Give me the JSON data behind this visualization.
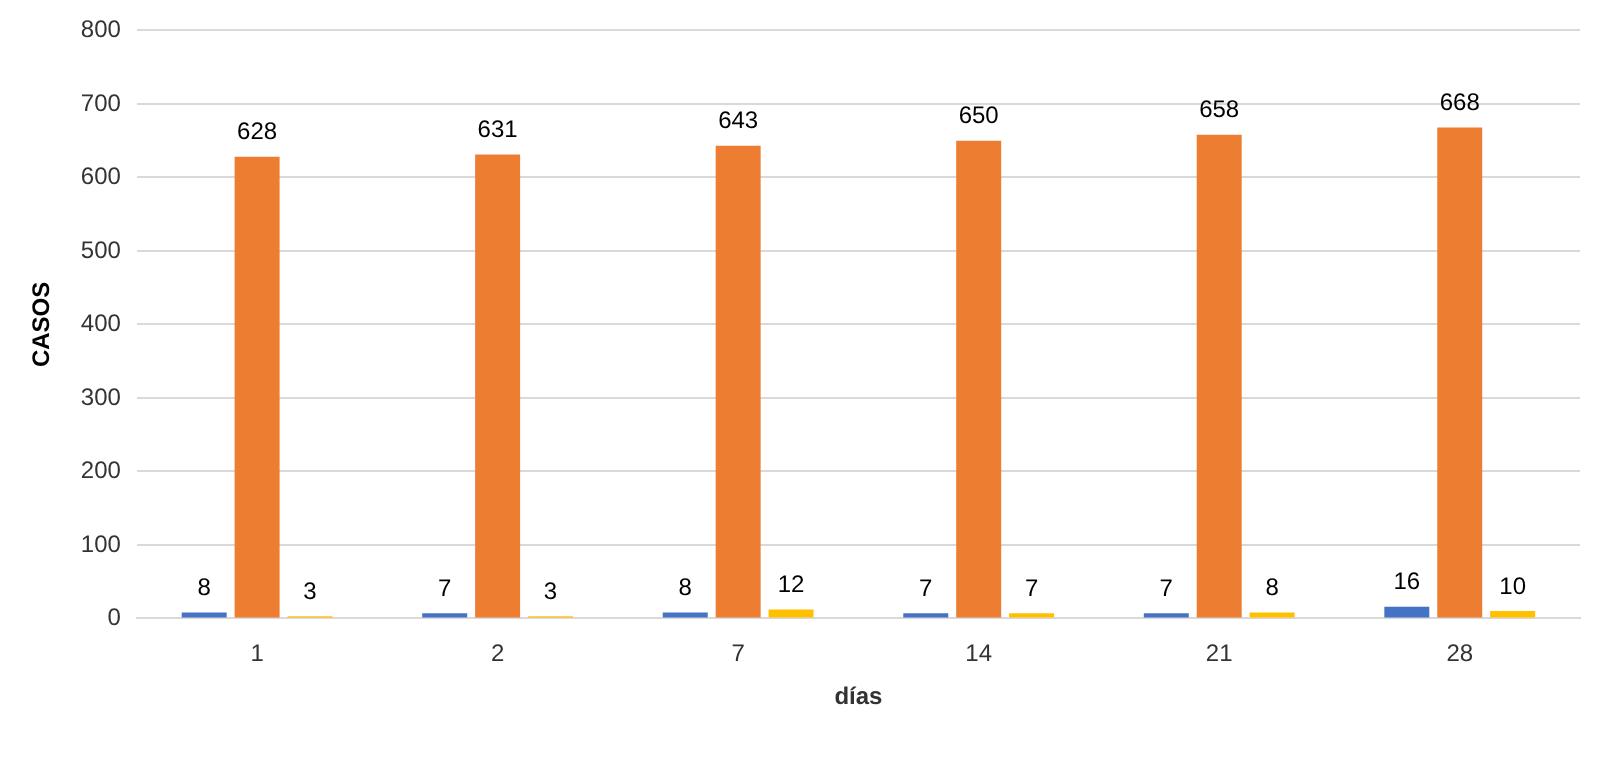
{
  "chart_data": {
    "type": "bar",
    "xlabel": "días",
    "ylabel": "CASOS",
    "categories": [
      "1",
      "2",
      "7",
      "14",
      "21",
      "28"
    ],
    "series": [
      {
        "color": "#4472c4",
        "values": [
          8,
          7,
          8,
          7,
          7,
          16
        ]
      },
      {
        "color": "#ed7d31",
        "values": [
          628,
          631,
          643,
          650,
          658,
          668
        ]
      },
      {
        "color": "#ffc000",
        "values": [
          3,
          3,
          12,
          7,
          8,
          10
        ]
      }
    ],
    "ylim": [
      0,
      800
    ],
    "yticks": [
      0,
      100,
      200,
      300,
      400,
      500,
      600,
      700,
      800
    ],
    "grid": "y",
    "data_labels": true
  }
}
